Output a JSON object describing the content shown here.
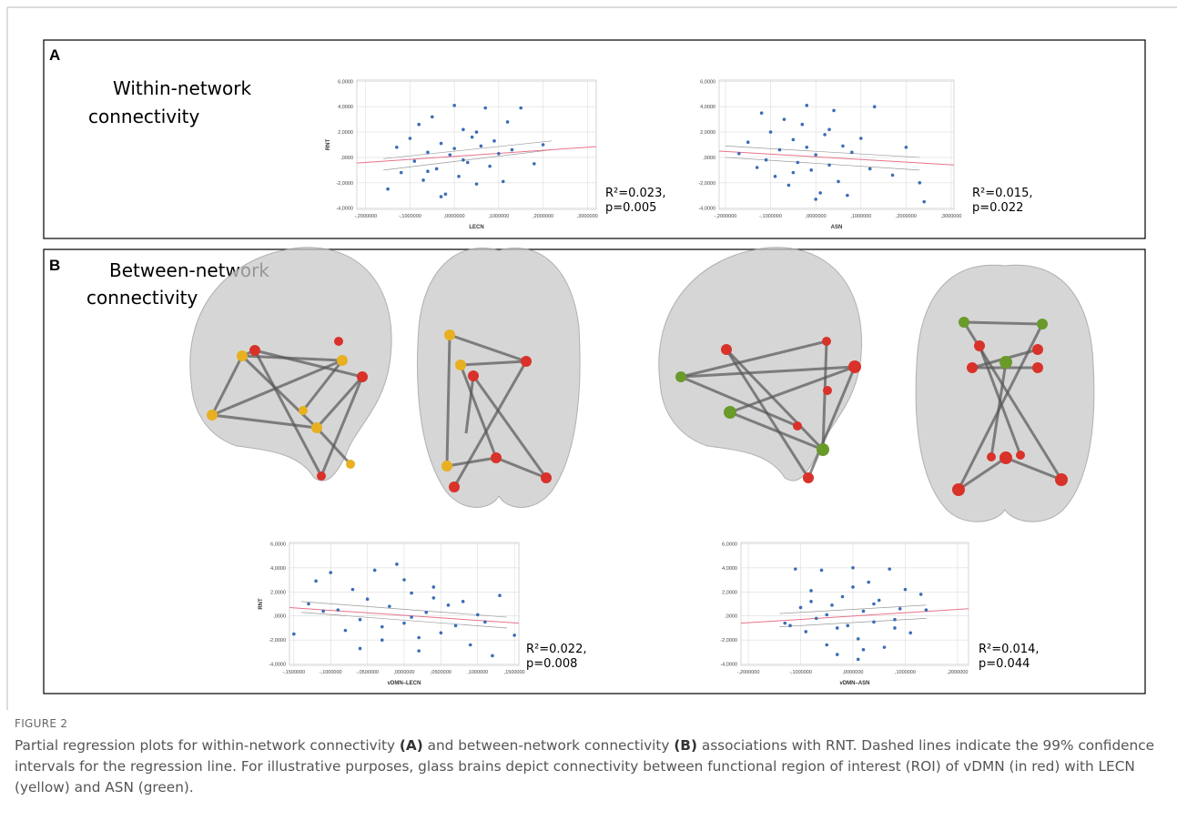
{
  "panels": [
    {
      "label": "A",
      "title_lines": [
        "Within-network",
        "connectivity"
      ]
    },
    {
      "label": "B",
      "title_lines": [
        "Between-network",
        "connectivity"
      ]
    }
  ],
  "chart_data": [
    {
      "type": "scatter",
      "xlabel": "LECN",
      "ylabel": "RNT",
      "color": "#3b6db5",
      "x": [
        -0.15,
        -0.13,
        -0.12,
        -0.1,
        -0.09,
        -0.08,
        -0.07,
        -0.06,
        -0.05,
        -0.04,
        -0.03,
        -0.02,
        -0.01,
        0,
        0.01,
        0.02,
        0.03,
        0.04,
        0.05,
        0.06,
        0.07,
        0.08,
        0.09,
        0.1,
        0.11,
        0.12,
        0.13,
        0.15,
        0.18,
        0.2,
        -0.03,
        0.02,
        0.05,
        -0.06,
        0.0
      ],
      "values": [
        -2.5,
        0.8,
        -1.2,
        1.5,
        -0.3,
        2.6,
        -1.8,
        0.4,
        3.2,
        -0.9,
        1.1,
        -2.9,
        0.2,
        4.1,
        -1.5,
        2.2,
        -0.4,
        1.6,
        -2.1,
        0.9,
        3.9,
        -0.7,
        1.3,
        0.3,
        -1.9,
        2.8,
        0.6,
        3.9,
        -0.5,
        1.0,
        -3.1,
        -0.2,
        2.0,
        -1.1,
        0.7
      ],
      "fit": {
        "color": "#e8738a",
        "x": [
          -0.22,
          0.32
        ],
        "y": [
          -0.45,
          0.85
        ]
      },
      "ci_upper": {
        "color": "#9a9a9a",
        "x": [
          -0.16,
          0.22
        ],
        "y": [
          -0.1,
          1.3
        ]
      },
      "ci_lower": {
        "color": "#9a9a9a",
        "x": [
          -0.16,
          0.22
        ],
        "y": [
          -1.0,
          0.6
        ]
      },
      "xlim": [
        -0.22,
        0.32
      ],
      "ylim": [
        -4.1,
        6.1
      ],
      "grid": true,
      "xticks": [
        {
          "value": -0.2,
          "label": "-,2000000"
        },
        {
          "value": -0.1,
          "label": "-,1000000"
        },
        {
          "value": 0,
          "label": ",0000000"
        },
        {
          "value": 0.1,
          "label": ",1000000"
        },
        {
          "value": 0.2,
          "label": ",2000000"
        },
        {
          "value": 0.3,
          "label": ",3000000"
        }
      ],
      "yticks": [
        {
          "value": -4,
          "label": "-4,0000"
        },
        {
          "value": -2,
          "label": "-2,0000"
        },
        {
          "value": 0,
          "label": ",0000"
        },
        {
          "value": 2,
          "label": "2,0000"
        },
        {
          "value": 4,
          "label": "4,0000"
        },
        {
          "value": 6,
          "label": "6,0000"
        }
      ],
      "annotations": [
        "R²=0.023,",
        "p=0.005"
      ]
    },
    {
      "type": "scatter",
      "xlabel": "ASN",
      "color": "#3b6db5",
      "x": [
        -0.17,
        -0.15,
        -0.13,
        -0.12,
        -0.1,
        -0.09,
        -0.08,
        -0.07,
        -0.06,
        -0.05,
        -0.04,
        -0.03,
        -0.02,
        -0.01,
        0,
        0.01,
        0.02,
        0.03,
        0.04,
        0.05,
        0.06,
        0.07,
        0.08,
        0.1,
        0.12,
        0.13,
        0.17,
        0.23,
        -0.11,
        -0.02,
        0.0,
        0.03,
        -0.05,
        0.24,
        0.2
      ],
      "values": [
        0.3,
        1.2,
        -0.8,
        3.5,
        2.0,
        -1.5,
        0.6,
        3.0,
        -2.2,
        1.4,
        -0.4,
        2.6,
        4.1,
        -1.0,
        0.2,
        -2.8,
        1.8,
        -0.6,
        3.7,
        -1.9,
        0.9,
        -3.0,
        0.4,
        1.5,
        -0.9,
        4.0,
        -1.4,
        -2.0,
        -0.2,
        0.8,
        -3.3,
        2.2,
        -1.2,
        -3.5,
        0.8
      ],
      "fit": {
        "color": "#e8738a",
        "x": [
          -0.214,
          0.306
        ],
        "y": [
          0.5,
          -0.6
        ]
      },
      "ci_upper": {
        "color": "#9a9a9a",
        "x": [
          -0.2,
          0.23
        ],
        "y": [
          0.9,
          0.0
        ]
      },
      "ci_lower": {
        "color": "#9a9a9a",
        "x": [
          -0.2,
          0.23
        ],
        "y": [
          0.0,
          -1.0
        ]
      },
      "xlim": [
        -0.214,
        0.306
      ],
      "ylim": [
        -4.1,
        6.1
      ],
      "grid": true,
      "xticks": [
        {
          "value": -0.2,
          "label": "-,2000000"
        },
        {
          "value": -0.1,
          "label": "-,1000000"
        },
        {
          "value": 0,
          "label": ",0000000"
        },
        {
          "value": 0.1,
          "label": ",1000000"
        },
        {
          "value": 0.2,
          "label": ",2000000"
        },
        {
          "value": 0.3,
          "label": ",3000000"
        }
      ],
      "yticks": [
        {
          "value": -4,
          "label": "-4,0000"
        },
        {
          "value": -2,
          "label": "-2,0000"
        },
        {
          "value": 0,
          "label": ",0000"
        },
        {
          "value": 2,
          "label": "2,0000"
        },
        {
          "value": 4,
          "label": "4,0000"
        },
        {
          "value": 6,
          "label": "6,0000"
        }
      ],
      "annotations": [
        "R²=0.015,",
        "p=0.022"
      ]
    },
    {
      "type": "scatter",
      "xlabel": "vDMN–LECN",
      "ylabel": "RNT",
      "color": "#3b6db5",
      "x": [
        -0.15,
        -0.13,
        -0.12,
        -0.1,
        -0.09,
        -0.08,
        -0.07,
        -0.06,
        -0.05,
        -0.04,
        -0.03,
        -0.02,
        -0.01,
        0,
        0.01,
        0.02,
        0.03,
        0.04,
        0.05,
        0.06,
        0.07,
        0.08,
        0.09,
        0.1,
        0.12,
        0.13,
        0.15,
        -0.11,
        -0.03,
        0.0,
        0.02,
        -0.06,
        0.04,
        0.11,
        0.01
      ],
      "values": [
        -1.5,
        1.0,
        2.9,
        3.6,
        0.5,
        -1.2,
        2.2,
        -0.3,
        1.4,
        3.8,
        -2.0,
        0.8,
        4.3,
        -0.6,
        1.9,
        -2.9,
        0.3,
        2.4,
        -1.4,
        0.9,
        -0.8,
        1.2,
        -2.4,
        0.1,
        -3.3,
        1.7,
        -1.6,
        0.4,
        -0.9,
        3.0,
        -1.8,
        -2.7,
        1.5,
        -0.5,
        -0.1
      ],
      "fit": {
        "color": "#e8738a",
        "x": [
          -0.156,
          0.156
        ],
        "y": [
          0.7,
          -0.6
        ]
      },
      "ci_upper": {
        "color": "#9a9a9a",
        "x": [
          -0.14,
          0.14
        ],
        "y": [
          1.2,
          -0.1
        ]
      },
      "ci_lower": {
        "color": "#9a9a9a",
        "x": [
          -0.14,
          0.14
        ],
        "y": [
          0.3,
          -1.0
        ]
      },
      "xlim": [
        -0.156,
        0.156
      ],
      "ylim": [
        -4.1,
        6.1
      ],
      "grid": true,
      "xticks": [
        {
          "value": -0.15,
          "label": "-,1500000"
        },
        {
          "value": -0.1,
          "label": "-,1000000"
        },
        {
          "value": -0.05,
          "label": "-,0500000"
        },
        {
          "value": 0,
          "label": ",0000000"
        },
        {
          "value": 0.05,
          "label": ",0500000"
        },
        {
          "value": 0.1,
          "label": ",1000000"
        },
        {
          "value": 0.15,
          "label": ",1500000"
        }
      ],
      "yticks": [
        {
          "value": -4,
          "label": "-4,0000"
        },
        {
          "value": -2,
          "label": "-2,0000"
        },
        {
          "value": 0,
          "label": ",0000"
        },
        {
          "value": 2,
          "label": "2,0000"
        },
        {
          "value": 4,
          "label": "4,0000"
        },
        {
          "value": 6,
          "label": "6,0000"
        }
      ],
      "annotations": [
        "R²=0.022,",
        "p=0.008"
      ]
    },
    {
      "type": "scatter",
      "xlabel": "vDMN–ASN",
      "color": "#3b6db5",
      "x": [
        -0.13,
        -0.11,
        -0.1,
        -0.09,
        -0.08,
        -0.07,
        -0.06,
        -0.05,
        -0.04,
        -0.03,
        -0.02,
        -0.01,
        0,
        0.01,
        0.02,
        0.03,
        0.04,
        0.05,
        0.06,
        0.07,
        0.08,
        0.09,
        0.1,
        0.11,
        0.13,
        0.14,
        -0.12,
        -0.03,
        0.0,
        0.02,
        -0.05,
        0.04,
        0.08,
        0.01,
        -0.08
      ],
      "values": [
        -0.6,
        3.9,
        0.7,
        -1.3,
        2.1,
        -0.2,
        3.8,
        -2.4,
        0.9,
        -3.2,
        1.6,
        -0.8,
        4.0,
        -1.9,
        0.4,
        2.8,
        -0.5,
        1.3,
        -2.6,
        3.9,
        -1.0,
        0.6,
        2.2,
        -1.4,
        1.8,
        0.5,
        -0.8,
        -1.0,
        2.4,
        -2.8,
        0.1,
        1.0,
        -0.3,
        -3.6,
        1.2
      ],
      "fit": {
        "color": "#e8738a",
        "x": [
          -0.214,
          0.221
        ],
        "y": [
          -0.6,
          0.6
        ]
      },
      "ci_upper": {
        "color": "#9a9a9a",
        "x": [
          -0.14,
          0.14
        ],
        "y": [
          0.2,
          0.9
        ]
      },
      "ci_lower": {
        "color": "#9a9a9a",
        "x": [
          -0.14,
          0.14
        ],
        "y": [
          -0.9,
          -0.2
        ]
      },
      "xlim": [
        -0.214,
        0.221
      ],
      "ylim": [
        -4.1,
        6.1
      ],
      "grid": true,
      "xticks": [
        {
          "value": -0.2,
          "label": "-,2000000"
        },
        {
          "value": -0.1,
          "label": "-,1000000"
        },
        {
          "value": 0,
          "label": ",0000000"
        },
        {
          "value": 0.1,
          "label": ",1000000"
        },
        {
          "value": 0.2,
          "label": ",2000000"
        }
      ],
      "yticks": [
        {
          "value": -4,
          "label": "-4,0000"
        },
        {
          "value": -2,
          "label": "-2,0000"
        },
        {
          "value": 0,
          "label": ",0000"
        },
        {
          "value": 2,
          "label": "2,0000"
        },
        {
          "value": 4,
          "label": "4,0000"
        },
        {
          "value": 6,
          "label": "6,0000"
        }
      ],
      "annotations": [
        "R²=0.014,",
        "p=0.044"
      ]
    }
  ],
  "caption": {
    "label": "FIGURE 2",
    "parts": [
      {
        "text": "Partial regression plots for within-network connectivity "
      },
      {
        "text": "(A)",
        "bold": true
      },
      {
        "text": " and between-network connectivity "
      },
      {
        "text": "(B)",
        "bold": true
      },
      {
        "text": " associations with RNT. Dashed lines indicate the 99% confidence intervals for the regression line. For illustrative purposes, glass brains depict connectivity between functional region of interest (ROI) of vDMN (in red) with LECN (yellow) and ASN (green)."
      }
    ]
  }
}
